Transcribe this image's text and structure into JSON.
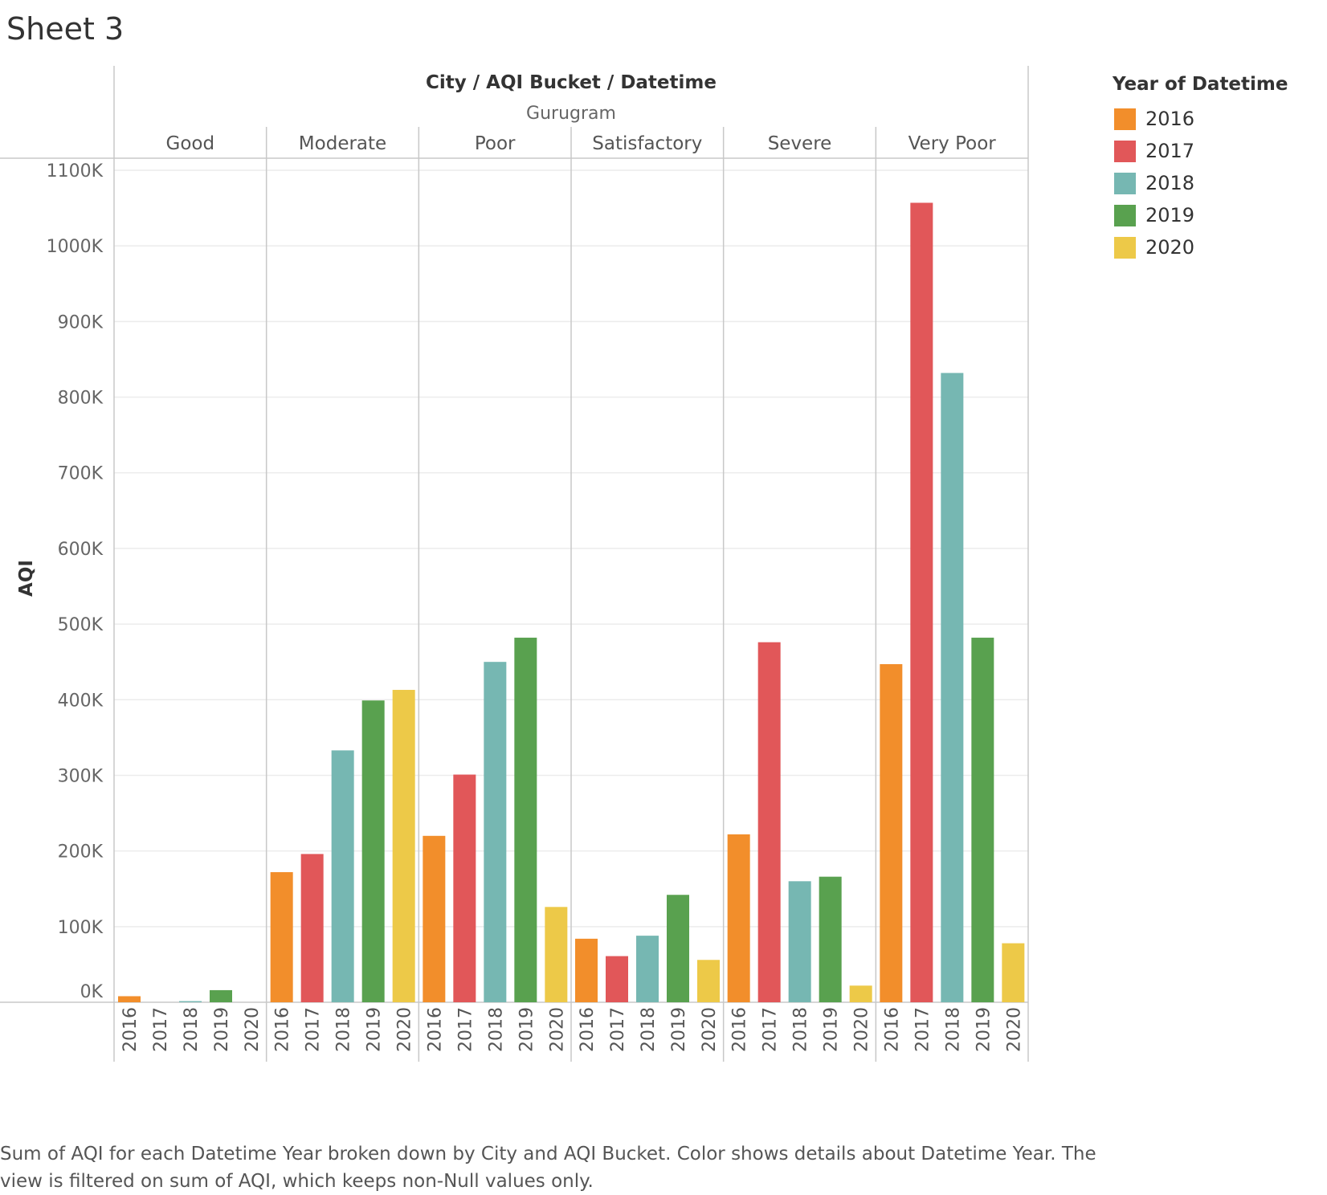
{
  "sheet": {
    "title": "Sheet 3",
    "caption": "Sum of AQI for each Datetime Year broken down by City and AQI Bucket.  Color shows details about Datetime Year. The view is filtered on sum of AQI, which keeps non-Null values only."
  },
  "legend": {
    "title": "Year of Datetime",
    "items": [
      {
        "label": "2016",
        "color": "#F28E2B"
      },
      {
        "label": "2017",
        "color": "#E15759"
      },
      {
        "label": "2018",
        "color": "#76B7B2"
      },
      {
        "label": "2019",
        "color": "#59A14F"
      },
      {
        "label": "2020",
        "color": "#EDC948"
      }
    ]
  },
  "chart_data": {
    "type": "bar",
    "header_title": "City / AQI Bucket / Datetime",
    "city": "Gurugram",
    "ylabel": "AQI",
    "ylim": [
      0,
      1100000
    ],
    "yticks": [
      0,
      100000,
      200000,
      300000,
      400000,
      500000,
      600000,
      700000,
      800000,
      900000,
      1000000,
      1100000
    ],
    "ytick_labels": [
      "0K",
      "100K",
      "200K",
      "300K",
      "400K",
      "500K",
      "600K",
      "700K",
      "800K",
      "900K",
      "1000K",
      "1100K"
    ],
    "grid": true,
    "years": [
      "2016",
      "2017",
      "2018",
      "2019",
      "2020"
    ],
    "groups": [
      {
        "name": "Good",
        "values": [
          8000,
          0,
          1500,
          16000,
          0
        ]
      },
      {
        "name": "Moderate",
        "values": [
          172000,
          196000,
          333000,
          399000,
          413000
        ]
      },
      {
        "name": "Poor",
        "values": [
          220000,
          301000,
          450000,
          482000,
          126000
        ]
      },
      {
        "name": "Satisfactory",
        "values": [
          84000,
          61000,
          88000,
          142000,
          56000
        ]
      },
      {
        "name": "Severe",
        "values": [
          222000,
          476000,
          160000,
          166000,
          22000
        ]
      },
      {
        "name": "Very Poor",
        "values": [
          447000,
          1057000,
          832000,
          482000,
          78000
        ]
      }
    ]
  }
}
